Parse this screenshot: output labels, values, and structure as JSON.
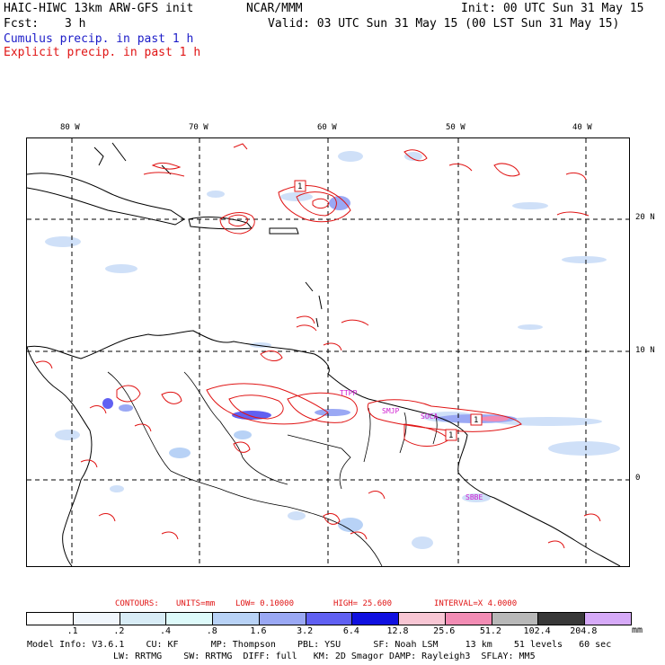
{
  "header": {
    "model_title": "HAIC-HIWC 13km ARW-GFS init",
    "org": "NCAR/MMM",
    "init": "Init: 00 UTC Sun 31 May 15",
    "fcst_label": "Fcst:",
    "fcst_value": "3 h",
    "valid": "Valid: 03 UTC Sun 31 May 15 (00 LST Sun 31 May 15)",
    "cumulus": "Cumulus precip. in past 1 h",
    "explicit": "Explicit precip. in past 1 h"
  },
  "map": {
    "lon_labels": [
      "80 W",
      "70 W",
      "60 W",
      "50 W",
      "40 W"
    ],
    "lat_labels": [
      "20 N",
      "10 N",
      "0"
    ],
    "station_labels": [
      "TTPP",
      "SMJP",
      "SOCA",
      "SBBE"
    ],
    "max_labels": [
      "1",
      "1",
      "1"
    ]
  },
  "contour_info": {
    "contours_label": "CONTOURS:",
    "units": "UNITS=mm",
    "low": "LOW= 0.10000",
    "high": "HIGH= 25.600",
    "interval": "INTERVAL=X 4.0000"
  },
  "colorbar": {
    "ticks": [
      ".1",
      ".2",
      ".4",
      ".8",
      "1.6",
      "3.2",
      "6.4",
      "12.8",
      "25.6",
      "51.2",
      "102.4",
      "204.8"
    ],
    "unit": "mm",
    "colors": [
      "#ffffff",
      "#f0f6fc",
      "#d8ecf6",
      "#ddfafa",
      "#b8d2f6",
      "#9aa8f4",
      "#6060f2",
      "#1010e0",
      "#f8c6d4",
      "#f28cb4",
      "#b8b8b8",
      "#383838",
      "#d6aaf8"
    ]
  },
  "model_info": {
    "line1": "Model Info: V3.6.1    CU: KF      MP: Thompson    PBL: YSU      SF: Noah LSM     13 km    51 levels   60 sec",
    "line2": "LW: RRTMG    SW: RRTMG  DIFF: full   KM: 2D Smagor DAMP: Rayleigh3  SFLAY: MM5"
  }
}
